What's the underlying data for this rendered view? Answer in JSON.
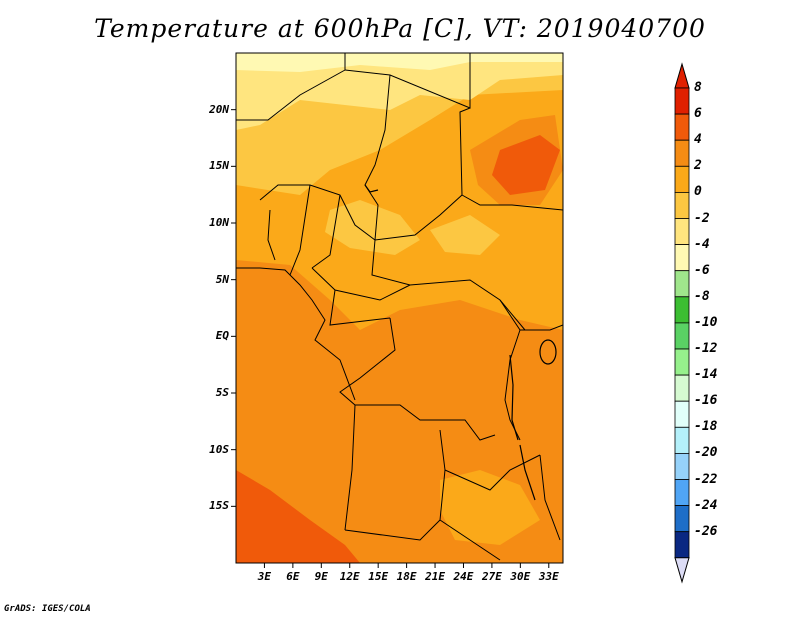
{
  "title": "Temperature at 600hPa [C], VT: 2019040700",
  "credit": "GrADS: IGES/COLA",
  "lat_labels": [
    {
      "text": "20N",
      "lat": 20
    },
    {
      "text": "15N",
      "lat": 15
    },
    {
      "text": "10N",
      "lat": 10
    },
    {
      "text": "5N",
      "lat": 5
    },
    {
      "text": "EQ",
      "lat": 0
    },
    {
      "text": "5S",
      "lat": -5
    },
    {
      "text": "10S",
      "lat": -10
    },
    {
      "text": "15S",
      "lat": -15
    }
  ],
  "lon_labels": [
    {
      "text": "3E",
      "lon": 3
    },
    {
      "text": "6E",
      "lon": 6
    },
    {
      "text": "9E",
      "lon": 9
    },
    {
      "text": "12E",
      "lon": 12
    },
    {
      "text": "15E",
      "lon": 15
    },
    {
      "text": "18E",
      "lon": 18
    },
    {
      "text": "21E",
      "lon": 21
    },
    {
      "text": "24E",
      "lon": 24
    },
    {
      "text": "27E",
      "lon": 27
    },
    {
      "text": "30E",
      "lon": 30
    },
    {
      "text": "33E",
      "lon": 33
    }
  ],
  "map_extent": {
    "lon_min": 0,
    "lon_max": 34.5,
    "lat_min": -20,
    "lat_max": 25
  },
  "colorbar": {
    "labels": [
      "8",
      "6",
      "4",
      "2",
      "0",
      "-2",
      "-4",
      "-6",
      "-8",
      "-10",
      "-12",
      "-14",
      "-16",
      "-18",
      "-20",
      "-22",
      "-24",
      "-26"
    ],
    "colors": [
      "#e02000",
      "#f05a0a",
      "#f58c14",
      "#fba919",
      "#fcc742",
      "#ffe57f",
      "#fff9b3",
      "#a0e68c",
      "#3cbe32",
      "#5ad264",
      "#96f08c",
      "#d6fad2",
      "#e1fffa",
      "#b4f0fa",
      "#96d2fa",
      "#50a5f5",
      "#1e6ec8",
      "#0a2882"
    ],
    "over_color": "#e02000",
    "under_color": "#dcdcf5"
  }
}
